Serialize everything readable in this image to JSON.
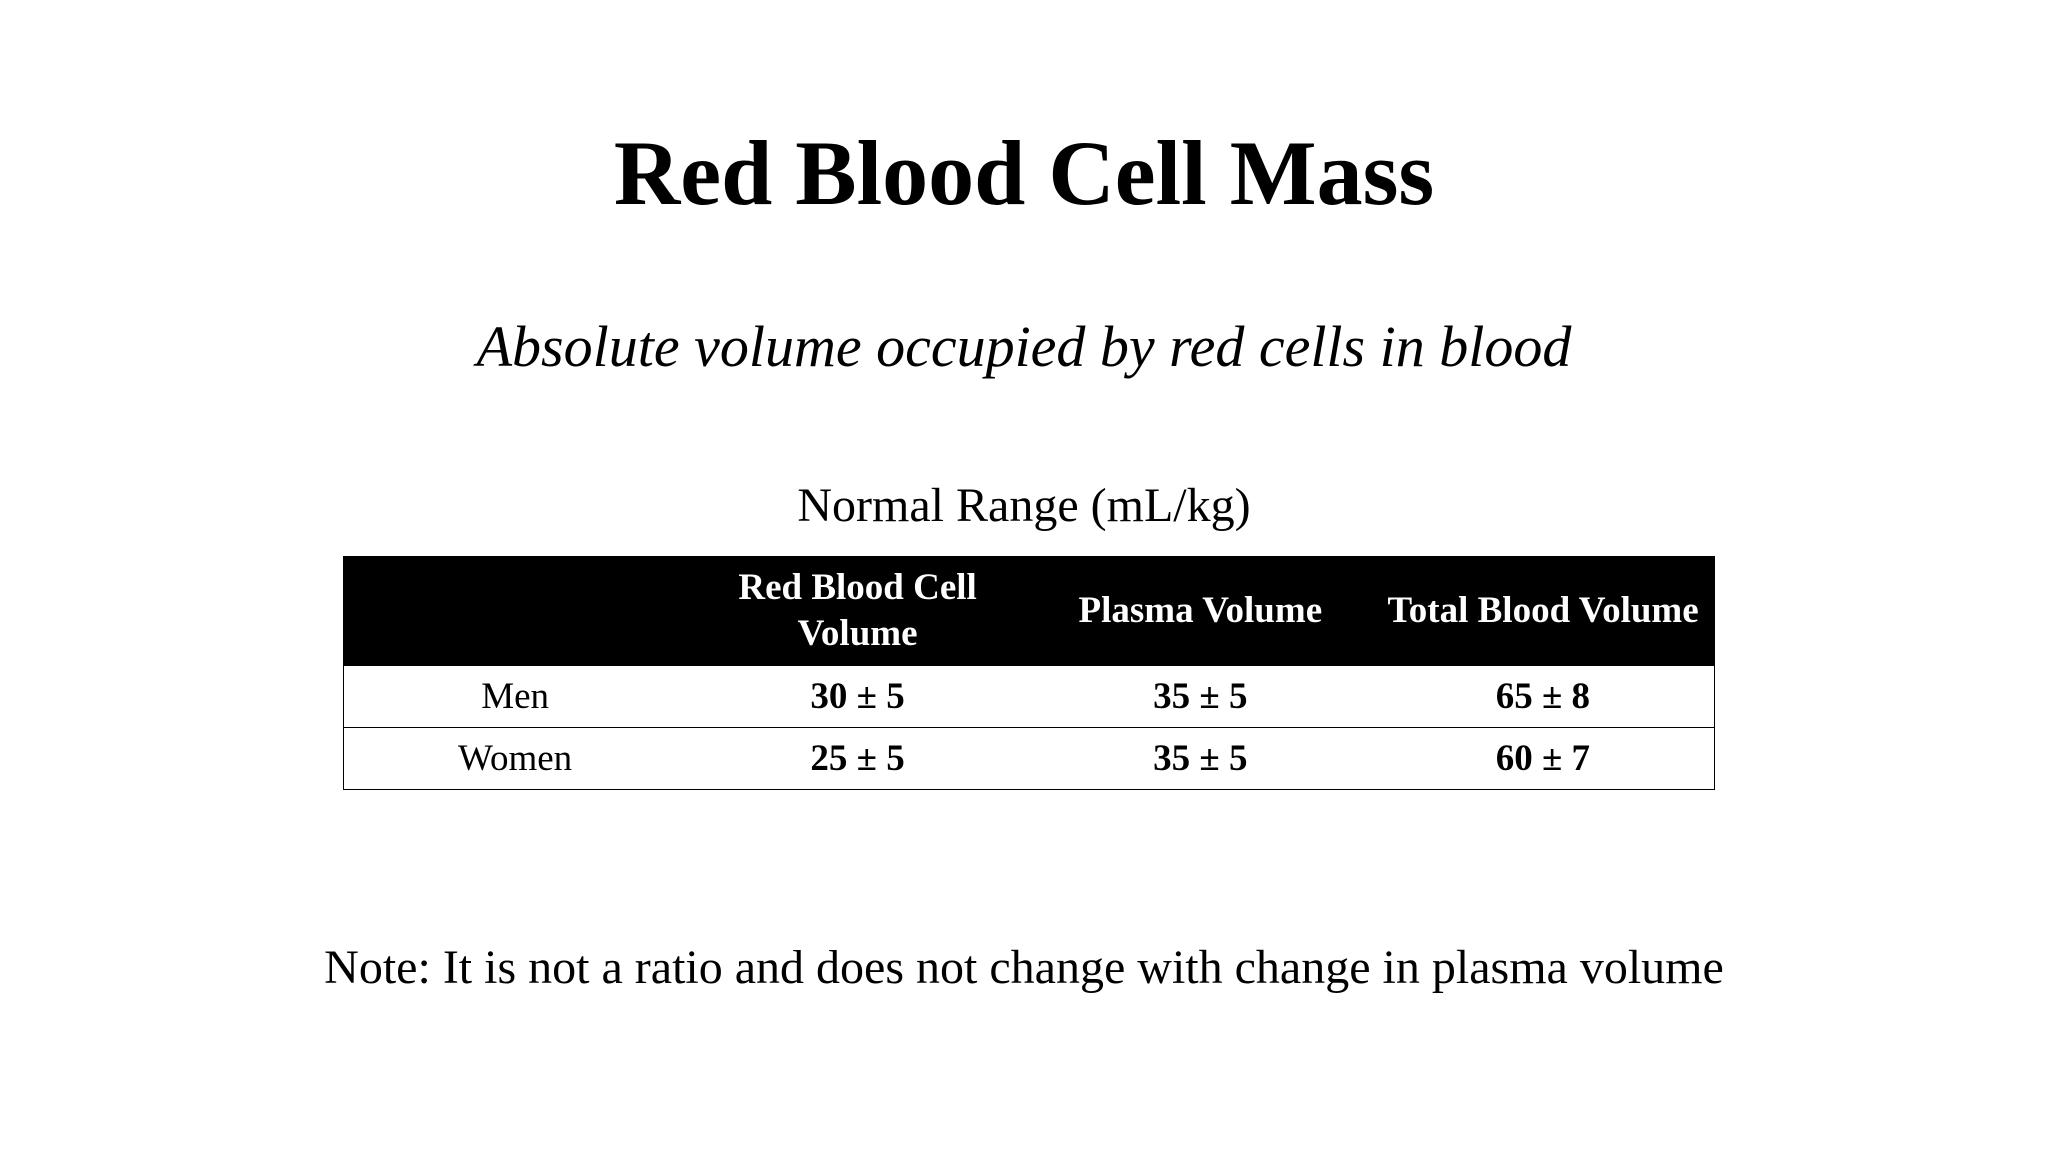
{
  "slide": {
    "title": "Red Blood Cell Mass",
    "subtitle": "Absolute volume occupied by red cells in blood",
    "table_caption": "Normal Range (mL/kg)",
    "table": {
      "headers": [
        "",
        "Red Blood Cell Volume",
        "Plasma Volume",
        "Total Blood Volume"
      ],
      "rows": [
        {
          "label": "Men",
          "values": [
            "30 ± 5",
            "35 ± 5",
            "65 ± 8"
          ]
        },
        {
          "label": "Women",
          "values": [
            "25 ± 5",
            "35 ± 5",
            "60 ± 7"
          ]
        }
      ]
    },
    "note": "Note: It is not a ratio and does not change with change in plasma volume"
  },
  "colors": {
    "text": "#000000",
    "background": "#ffffff",
    "header_background": "#000000",
    "header_text": "#ffffff"
  }
}
